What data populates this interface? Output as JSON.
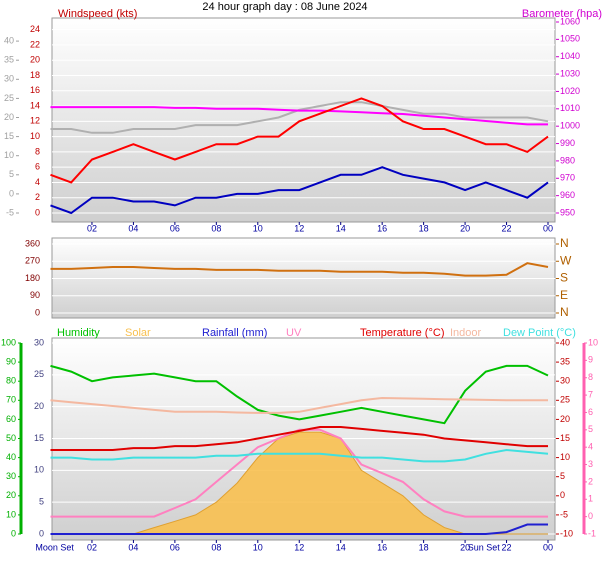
{
  "chart_data": [
    {
      "type": "line",
      "title": "24 hour graph day : 08 June 2024",
      "x": [
        0,
        1,
        2,
        3,
        4,
        5,
        6,
        7,
        8,
        9,
        10,
        11,
        12,
        13,
        14,
        15,
        16,
        17,
        18,
        19,
        20,
        21,
        22,
        23,
        24
      ],
      "xlim": [
        0,
        24
      ],
      "xticks": [
        {
          "value": 2,
          "label": "02"
        },
        {
          "value": 4,
          "label": "04"
        },
        {
          "value": 6,
          "label": "06"
        },
        {
          "value": 8,
          "label": "08"
        },
        10,
        12,
        14,
        16,
        18,
        20,
        22,
        {
          "value": 24,
          "label": "00"
        }
      ],
      "y_axes": [
        {
          "lim": [
            -5,
            45
          ],
          "ticks": [
            -5,
            0,
            5,
            10,
            15,
            20,
            25,
            30,
            35,
            40
          ],
          "color": "#a0a0a0"
        },
        {
          "label": "Windspeed (kts)",
          "lim": [
            0,
            25
          ],
          "ticks": [
            0,
            2,
            4,
            6,
            8,
            10,
            12,
            14,
            16,
            18,
            20,
            22,
            24
          ],
          "color": "#c00000",
          "grid": true
        },
        {
          "label": "Barometer (hpa)",
          "lim": [
            950,
            1060
          ],
          "ticks": [
            950,
            960,
            970,
            980,
            990,
            1000,
            1010,
            1020,
            1030,
            1040,
            1050,
            1060
          ],
          "color": "#d000d0"
        }
      ],
      "series": [
        {
          "color": "#b0b0b0",
          "axis": 0,
          "values": [
            17,
            17,
            16,
            16,
            17,
            17,
            17,
            18,
            18,
            18,
            19,
            20,
            22,
            23,
            24,
            24,
            23,
            22,
            21,
            21,
            20,
            20,
            20,
            20,
            19
          ]
        },
        {
          "color": "#ff00ff",
          "axis": 2,
          "values": [
            1011,
            1011,
            1011,
            1011,
            1011,
            1011,
            1010.5,
            1010.5,
            1010,
            1010,
            1010,
            1009.5,
            1009,
            1009,
            1008.5,
            1008,
            1007.5,
            1007,
            1006,
            1005,
            1004,
            1003,
            1002,
            1001,
            1001
          ]
        },
        {
          "color": "#ff0000",
          "axis": 1,
          "values": [
            5,
            4,
            7,
            8,
            9,
            8,
            7,
            8,
            9,
            9,
            10,
            10,
            12,
            13,
            14,
            15,
            14,
            12,
            11,
            11,
            10,
            9,
            9,
            8,
            10
          ]
        },
        {
          "color": "#0000c0",
          "axis": 1,
          "values": [
            1,
            0,
            2,
            2,
            1.5,
            1.5,
            1,
            2,
            2,
            2.5,
            2.5,
            3,
            3,
            4,
            5,
            5,
            6,
            5,
            4.5,
            4,
            3,
            4,
            3,
            2,
            4
          ]
        }
      ]
    },
    {
      "type": "line",
      "x": [
        0,
        1,
        2,
        3,
        4,
        5,
        6,
        7,
        8,
        9,
        10,
        11,
        12,
        13,
        14,
        15,
        16,
        17,
        18,
        19,
        20,
        21,
        22,
        23,
        24
      ],
      "xlim": [
        0,
        24
      ],
      "y_axes": [
        {
          "lim": [
            0,
            360
          ],
          "ticks": [
            0,
            90,
            180,
            270,
            360
          ],
          "color": "#800000",
          "grid": true
        },
        {
          "lim": [
            0,
            360
          ],
          "ticks": [
            {
              "value": 0,
              "label": "N"
            },
            {
              "value": 90,
              "label": "E"
            },
            {
              "value": 180,
              "label": "S"
            },
            {
              "value": 270,
              "label": "W"
            },
            {
              "value": 360,
              "label": "N"
            }
          ],
          "color": "#b06000"
        }
      ],
      "series": [
        {
          "color": "#d07010",
          "axis": 0,
          "values": [
            230,
            230,
            235,
            240,
            240,
            235,
            230,
            230,
            225,
            225,
            225,
            220,
            220,
            220,
            215,
            215,
            215,
            210,
            210,
            205,
            195,
            195,
            200,
            260,
            240
          ]
        }
      ]
    },
    {
      "type": "line",
      "x": [
        0,
        1,
        2,
        3,
        4,
        5,
        6,
        7,
        8,
        9,
        10,
        11,
        12,
        13,
        14,
        15,
        16,
        17,
        18,
        19,
        20,
        21,
        22,
        23,
        24
      ],
      "xlim": [
        0,
        24
      ],
      "xticks": [
        {
          "value": 2,
          "label": "02"
        },
        {
          "value": 4,
          "label": "04"
        },
        {
          "value": 6,
          "label": "06"
        },
        {
          "value": 8,
          "label": "08"
        },
        10,
        12,
        14,
        16,
        18,
        20,
        22,
        {
          "value": 24,
          "label": "00"
        }
      ],
      "events": [
        {
          "label": "Moon Set",
          "x": 0.2
        },
        {
          "label": "Sun Set",
          "x": 20.9
        }
      ],
      "y_axes": [
        {
          "lim": [
            0,
            100
          ],
          "ticks": [
            0,
            10,
            20,
            30,
            40,
            50,
            60,
            70,
            80,
            90,
            100
          ],
          "color": "#00b000"
        },
        {
          "lim": [
            0,
            30
          ],
          "ticks": [
            0,
            5,
            10,
            15,
            20,
            25,
            30
          ],
          "color": "#404080",
          "grid": true
        },
        {
          "lim": [
            -10,
            40
          ],
          "ticks": [
            -10,
            -5,
            0,
            5,
            10,
            15,
            20,
            25,
            30,
            35,
            40
          ],
          "color": "#c00000"
        },
        {
          "lim": [
            -1,
            10
          ],
          "ticks": [
            -1,
            0,
            1,
            2,
            3,
            4,
            5,
            6,
            7,
            8,
            9,
            10
          ],
          "color": "#ff60b0"
        }
      ],
      "series": [
        {
          "name": "Humidity",
          "type": "line",
          "color": "#00c000",
          "axis": 0,
          "values": [
            88,
            85,
            80,
            82,
            83,
            84,
            82,
            80,
            80,
            72,
            65,
            62,
            60,
            62,
            64,
            66,
            64,
            62,
            60,
            58,
            75,
            85,
            88,
            88,
            83
          ]
        },
        {
          "name": "Solar",
          "type": "area",
          "color": "#f8c050",
          "axis": 1,
          "values": [
            0,
            0,
            0,
            0,
            0,
            1,
            2,
            3,
            5,
            8,
            12,
            15,
            16,
            16,
            15,
            10,
            8,
            6,
            3,
            1,
            0,
            0,
            0,
            0,
            0
          ]
        },
        {
          "name": "Rainfall (mm)",
          "type": "line",
          "color": "#2020d0",
          "axis": 1,
          "values": [
            0,
            0,
            0,
            0,
            0,
            0,
            0,
            0,
            0,
            0,
            0,
            0,
            0,
            0,
            0,
            0,
            0,
            0,
            0,
            0,
            0,
            0,
            0.3,
            1.5,
            1.5
          ]
        },
        {
          "name": "UV",
          "type": "line",
          "color": "#ff80c0",
          "axis": 3,
          "values": [
            0,
            0,
            0,
            0,
            0,
            0,
            0.5,
            1,
            2,
            3,
            4,
            4.5,
            5,
            5,
            4.5,
            3,
            2.5,
            2,
            1,
            0.3,
            0,
            0,
            0,
            0,
            0
          ]
        },
        {
          "name": "Temperature (°C)",
          "type": "line",
          "color": "#e00000",
          "axis": 2,
          "values": [
            12,
            12,
            12,
            12,
            12.5,
            12.5,
            13,
            13,
            13.5,
            14,
            15,
            16,
            17,
            18,
            18,
            17.5,
            17,
            16.5,
            16,
            15,
            14.5,
            14,
            13.5,
            13,
            13
          ]
        },
        {
          "name": "Indoor",
          "type": "line",
          "color": "#f4b8a0",
          "axis": 2,
          "values": [
            25,
            24.5,
            24,
            23.5,
            23,
            22.5,
            22,
            22,
            22,
            21.8,
            21.7,
            21.7,
            22,
            23,
            24,
            25,
            25.6,
            25.5,
            25.4,
            25.3,
            25.2,
            25.1,
            25,
            25,
            25
          ]
        },
        {
          "name": "Dew Point (°C)",
          "type": "line",
          "color": "#40e0e0",
          "axis": 2,
          "values": [
            10,
            10,
            9.5,
            9.5,
            10,
            10,
            10,
            10,
            10.5,
            10.5,
            11,
            11,
            11,
            11,
            10.5,
            10,
            10,
            9.5,
            9,
            9,
            9.5,
            11,
            12,
            11.5,
            11
          ]
        }
      ]
    }
  ]
}
